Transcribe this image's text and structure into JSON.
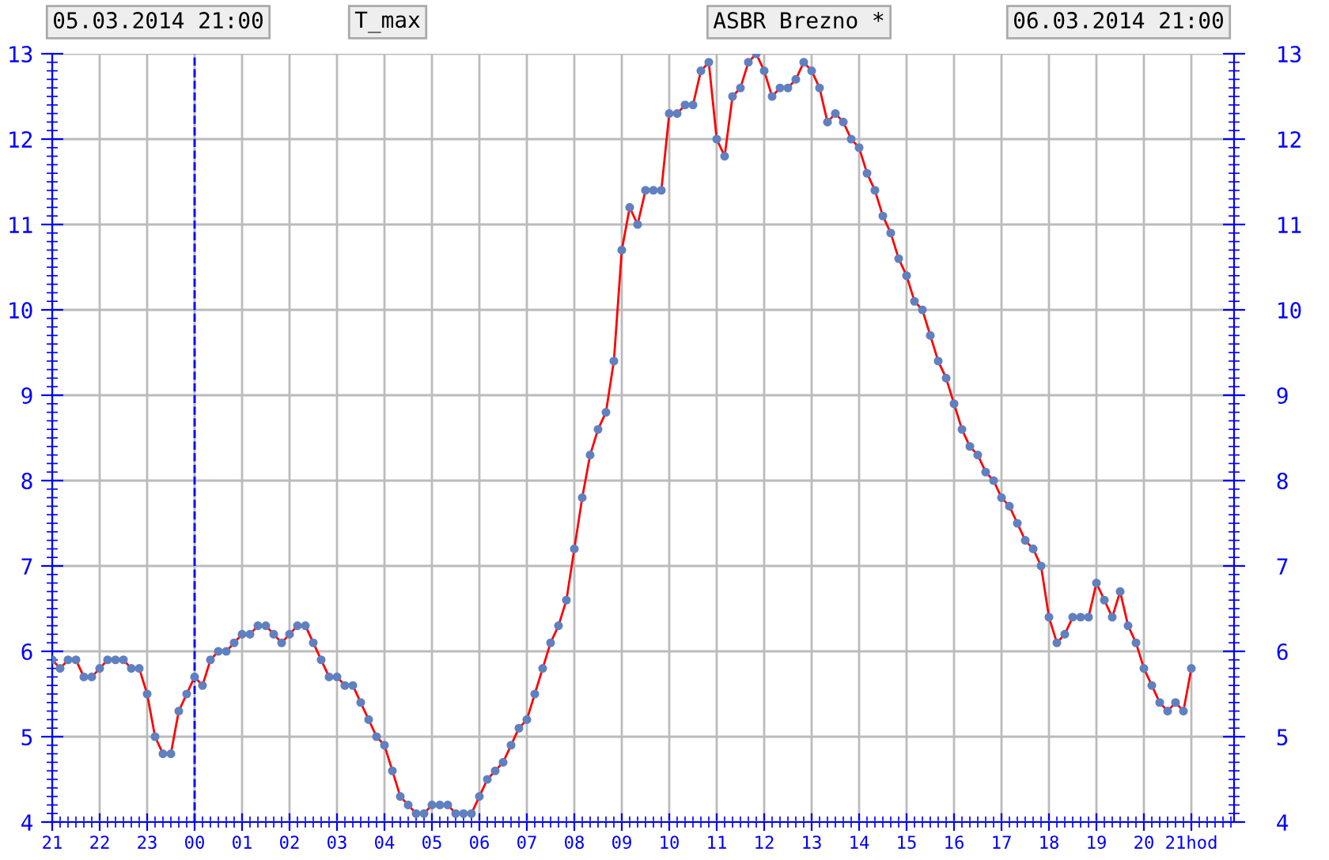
{
  "chart_data": {
    "type": "line",
    "annotations": [
      "05.03.2014 21:00",
      "T_max",
      "ASBR Brezno *",
      "06.03.2014 21:00"
    ],
    "x": [
      "2014-03-05T21:00",
      "2014-03-05T21:10",
      "2014-03-05T21:20",
      "2014-03-05T21:30",
      "2014-03-05T21:40",
      "2014-03-05T21:50",
      "2014-03-05T22:00",
      "2014-03-05T22:10",
      "2014-03-05T22:20",
      "2014-03-05T22:30",
      "2014-03-05T22:40",
      "2014-03-05T22:50",
      "2014-03-05T23:00",
      "2014-03-05T23:10",
      "2014-03-05T23:20",
      "2014-03-05T23:30",
      "2014-03-05T23:40",
      "2014-03-05T23:50",
      "2014-03-06T00:00",
      "2014-03-06T00:10",
      "2014-03-06T00:20",
      "2014-03-06T00:30",
      "2014-03-06T00:40",
      "2014-03-06T00:50",
      "2014-03-06T01:00",
      "2014-03-06T01:10",
      "2014-03-06T01:20",
      "2014-03-06T01:30",
      "2014-03-06T01:40",
      "2014-03-06T01:50",
      "2014-03-06T02:00",
      "2014-03-06T02:10",
      "2014-03-06T02:20",
      "2014-03-06T02:30",
      "2014-03-06T02:40",
      "2014-03-06T02:50",
      "2014-03-06T03:00",
      "2014-03-06T03:10",
      "2014-03-06T03:20",
      "2014-03-06T03:30",
      "2014-03-06T03:40",
      "2014-03-06T03:50",
      "2014-03-06T04:00",
      "2014-03-06T04:10",
      "2014-03-06T04:20",
      "2014-03-06T04:30",
      "2014-03-06T04:40",
      "2014-03-06T04:50",
      "2014-03-06T05:00",
      "2014-03-06T05:10",
      "2014-03-06T05:20",
      "2014-03-06T05:30",
      "2014-03-06T05:40",
      "2014-03-06T05:50",
      "2014-03-06T06:00",
      "2014-03-06T06:10",
      "2014-03-06T06:20",
      "2014-03-06T06:30",
      "2014-03-06T06:40",
      "2014-03-06T06:50",
      "2014-03-06T07:00",
      "2014-03-06T07:10",
      "2014-03-06T07:20",
      "2014-03-06T07:30",
      "2014-03-06T07:40",
      "2014-03-06T07:50",
      "2014-03-06T08:00",
      "2014-03-06T08:10",
      "2014-03-06T08:20",
      "2014-03-06T08:30",
      "2014-03-06T08:40",
      "2014-03-06T08:50",
      "2014-03-06T09:00",
      "2014-03-06T09:10",
      "2014-03-06T09:20",
      "2014-03-06T09:30",
      "2014-03-06T09:40",
      "2014-03-06T09:50",
      "2014-03-06T10:00",
      "2014-03-06T10:10",
      "2014-03-06T10:20",
      "2014-03-06T10:30",
      "2014-03-06T10:40",
      "2014-03-06T10:50",
      "2014-03-06T11:00",
      "2014-03-06T11:10",
      "2014-03-06T11:20",
      "2014-03-06T11:30",
      "2014-03-06T11:40",
      "2014-03-06T11:50",
      "2014-03-06T12:00",
      "2014-03-06T12:10",
      "2014-03-06T12:20",
      "2014-03-06T12:30",
      "2014-03-06T12:40",
      "2014-03-06T12:50",
      "2014-03-06T13:00",
      "2014-03-06T13:10",
      "2014-03-06T13:20",
      "2014-03-06T13:30",
      "2014-03-06T13:40",
      "2014-03-06T13:50",
      "2014-03-06T14:00",
      "2014-03-06T14:10",
      "2014-03-06T14:20",
      "2014-03-06T14:30",
      "2014-03-06T14:40",
      "2014-03-06T14:50",
      "2014-03-06T15:00",
      "2014-03-06T15:10",
      "2014-03-06T15:20",
      "2014-03-06T15:30",
      "2014-03-06T15:40",
      "2014-03-06T15:50",
      "2014-03-06T16:00",
      "2014-03-06T16:10",
      "2014-03-06T16:20",
      "2014-03-06T16:30",
      "2014-03-06T16:40",
      "2014-03-06T16:50",
      "2014-03-06T17:00",
      "2014-03-06T17:10",
      "2014-03-06T17:20",
      "2014-03-06T17:30",
      "2014-03-06T17:40",
      "2014-03-06T17:50",
      "2014-03-06T18:00",
      "2014-03-06T18:10",
      "2014-03-06T18:20",
      "2014-03-06T18:30",
      "2014-03-06T18:40",
      "2014-03-06T18:50",
      "2014-03-06T19:00",
      "2014-03-06T19:10",
      "2014-03-06T19:20",
      "2014-03-06T19:30",
      "2014-03-06T19:40",
      "2014-03-06T19:50",
      "2014-03-06T20:00",
      "2014-03-06T20:10",
      "2014-03-06T20:20",
      "2014-03-06T20:30",
      "2014-03-06T20:40",
      "2014-03-06T20:50",
      "2014-03-06T21:00"
    ],
    "series": [
      {
        "color": "#ff0000",
        "values": [
          5.9,
          5.8,
          5.9,
          5.9,
          5.7,
          5.7,
          5.8,
          5.9,
          5.9,
          5.9,
          5.8,
          5.8,
          5.5,
          5.0,
          4.8,
          4.8,
          5.3,
          5.5,
          5.7,
          5.6,
          5.9,
          6.0,
          6.0,
          6.1,
          6.2,
          6.2,
          6.3,
          6.3,
          6.2,
          6.1,
          6.2,
          6.3,
          6.3,
          6.1,
          5.9,
          5.7,
          5.7,
          5.6,
          5.6,
          5.4,
          5.2,
          5.0,
          4.9,
          4.6,
          4.3,
          4.2,
          4.1,
          4.1,
          4.2,
          4.2,
          4.2,
          4.1,
          4.1,
          4.1,
          4.3,
          4.5,
          4.6,
          4.7,
          4.9,
          5.1,
          5.2,
          5.5,
          5.8,
          6.1,
          6.3,
          6.6,
          7.2,
          7.8,
          8.3,
          8.6,
          8.8,
          9.4,
          10.7,
          11.2,
          11.0,
          11.4,
          11.4,
          11.4,
          12.3,
          12.3,
          12.4,
          12.4,
          12.8,
          12.9,
          12.0,
          11.8,
          12.5,
          12.6,
          12.9,
          13.0,
          12.8,
          12.5,
          12.6,
          12.6,
          12.7,
          12.9,
          12.8,
          12.6,
          12.2,
          12.3,
          12.2,
          12.0,
          11.9,
          11.6,
          11.4,
          11.1,
          10.9,
          10.6,
          10.4,
          10.1,
          10.0,
          9.7,
          9.4,
          9.2,
          8.9,
          8.6,
          8.4,
          8.3,
          8.1,
          8.0,
          7.8,
          7.7,
          7.5,
          7.3,
          7.2,
          7.0,
          6.4,
          6.1,
          6.2,
          6.4,
          6.4,
          6.4,
          6.8,
          6.6,
          6.4,
          6.7,
          6.3,
          6.1,
          5.8,
          5.6,
          5.4,
          5.3,
          5.4,
          5.3,
          5.8
        ]
      }
    ],
    "xlim": [
      "2014-03-05T21:00",
      "2014-03-06T21:54"
    ],
    "xticks": [
      {
        "value": "2014-03-05T21:00",
        "label": "21"
      },
      {
        "value": "2014-03-05T22:00",
        "label": "22"
      },
      {
        "value": "2014-03-05T23:00",
        "label": "23"
      },
      {
        "value": "2014-03-06T00:00",
        "label": "00"
      },
      {
        "value": "2014-03-06T01:00",
        "label": "01"
      },
      {
        "value": "2014-03-06T02:00",
        "label": "02"
      },
      {
        "value": "2014-03-06T03:00",
        "label": "03"
      },
      {
        "value": "2014-03-06T04:00",
        "label": "04"
      },
      {
        "value": "2014-03-06T05:00",
        "label": "05"
      },
      {
        "value": "2014-03-06T06:00",
        "label": "06"
      },
      {
        "value": "2014-03-06T07:00",
        "label": "07"
      },
      {
        "value": "2014-03-06T08:00",
        "label": "08"
      },
      {
        "value": "2014-03-06T09:00",
        "label": "09"
      },
      {
        "value": "2014-03-06T10:00",
        "label": "10"
      },
      {
        "value": "2014-03-06T11:00",
        "label": "11"
      },
      {
        "value": "2014-03-06T12:00",
        "label": "12"
      },
      {
        "value": "2014-03-06T13:00",
        "label": "13"
      },
      {
        "value": "2014-03-06T14:00",
        "label": "14"
      },
      {
        "value": "2014-03-06T15:00",
        "label": "15"
      },
      {
        "value": "2014-03-06T16:00",
        "label": "16"
      },
      {
        "value": "2014-03-06T17:00",
        "label": "17"
      },
      {
        "value": "2014-03-06T18:00",
        "label": "18"
      },
      {
        "value": "2014-03-06T19:00",
        "label": "19"
      },
      {
        "value": "2014-03-06T20:00",
        "label": "20"
      },
      {
        "value": "2014-03-06T21:00",
        "label": "21hod"
      }
    ],
    "ylim": [
      4,
      13
    ],
    "yticks": [
      4,
      5,
      6,
      7,
      8,
      9,
      10,
      11,
      12,
      13
    ],
    "y2lim": [
      4,
      13
    ],
    "y2ticks": [
      4,
      5,
      6,
      7,
      8,
      9,
      10,
      11,
      12,
      13
    ],
    "ref_lines": [
      {
        "axis": "x",
        "value": "2014-03-06T00:00",
        "color": "#0000ff",
        "line_style": "dashed"
      }
    ],
    "grid": true,
    "marker": "circle",
    "line_style": "solid",
    "legend": false
  }
}
